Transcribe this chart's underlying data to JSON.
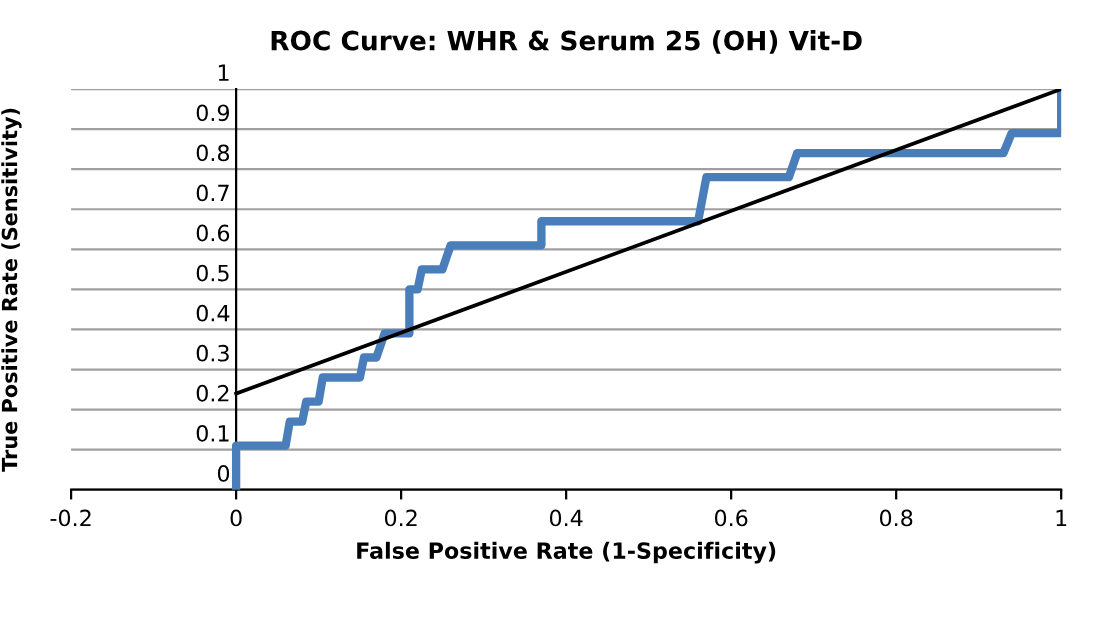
{
  "chart_data": {
    "type": "line",
    "title": "ROC Curve: WHR & Serum 25 (OH) Vit-D",
    "xlabel": "False Positive Rate (1-Specificity)",
    "ylabel": "True Positive Rate (Sensitivity)",
    "series": [
      {
        "color": "#4a7ebb",
        "x": [
          0,
          0,
          0.06,
          0.065,
          0.08,
          0.085,
          0.1,
          0.105,
          0.15,
          0.155,
          0.17,
          0.18,
          0.21,
          0.21,
          0.22,
          0.225,
          0.25,
          0.26,
          0.37,
          0.37,
          0.56,
          0.57,
          0.67,
          0.68,
          0.93,
          0.94,
          1,
          1
        ],
        "values": [
          0,
          0.11,
          0.11,
          0.17,
          0.17,
          0.22,
          0.22,
          0.28,
          0.28,
          0.33,
          0.33,
          0.39,
          0.39,
          0.5,
          0.5,
          0.55,
          0.55,
          0.61,
          0.61,
          0.67,
          0.67,
          0.78,
          0.78,
          0.84,
          0.84,
          0.89,
          0.89,
          1
        ]
      },
      {
        "color": "#000000",
        "x": [
          0,
          1
        ],
        "values": [
          0.24,
          1
        ]
      }
    ],
    "xlim": [
      -0.2,
      1
    ],
    "xticks": [
      {
        "value": -0.2,
        "label": "-0.2"
      },
      0,
      0.2,
      0.4,
      0.6,
      0.8,
      1
    ],
    "ylim": [
      0,
      1
    ],
    "yticks": [
      0,
      0.1,
      0.2,
      0.3,
      0.4,
      0.5,
      0.6,
      0.7,
      0.8,
      0.9,
      1
    ],
    "grid": "y",
    "marker": "none"
  }
}
